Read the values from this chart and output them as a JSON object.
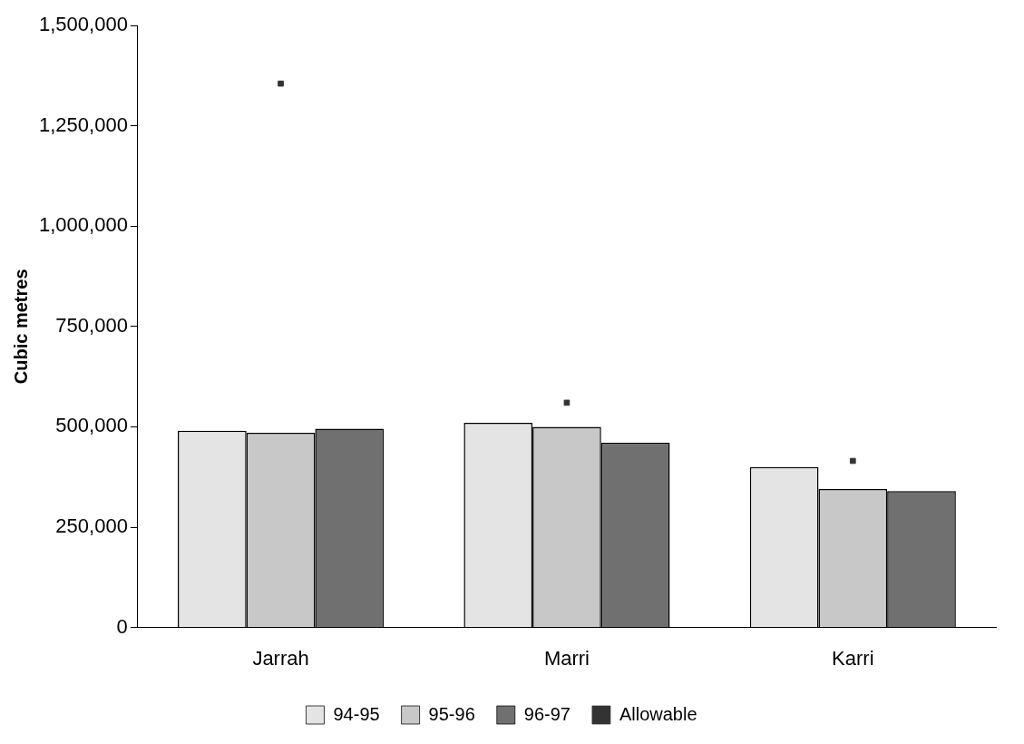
{
  "chart_data": {
    "type": "bar",
    "ylabel": "Cubic metres",
    "categories": [
      "Jarrah",
      "Marri",
      "Karri"
    ],
    "series": [
      {
        "name": "94-95",
        "color": "#e4e4e4",
        "values": [
          490000,
          510000,
          400000
        ]
      },
      {
        "name": "95-96",
        "color": "#c8c8c8",
        "values": [
          485000,
          500000,
          345000
        ]
      },
      {
        "name": "96-97",
        "color": "#707070",
        "values": [
          495000,
          460000,
          340000
        ]
      },
      {
        "name": "Allowable",
        "type": "scatter",
        "marker": "square",
        "color": "#333333",
        "x": [
          "Jarrah",
          "Marri",
          "Karri"
        ],
        "values": [
          1355000,
          560000,
          415000
        ]
      }
    ],
    "ylim": [
      0,
      1500000
    ],
    "yticks": [
      {
        "value": 0,
        "label": "0"
      },
      {
        "value": 250000,
        "label": "250,000"
      },
      {
        "value": 500000,
        "label": "500,000"
      },
      {
        "value": 750000,
        "label": "750,000"
      },
      {
        "value": 1000000,
        "label": "1,000,000"
      },
      {
        "value": 1250000,
        "label": "1,250,000"
      },
      {
        "value": 1500000,
        "label": "1,500,000"
      }
    ],
    "grid": false,
    "legend": "bottom"
  }
}
